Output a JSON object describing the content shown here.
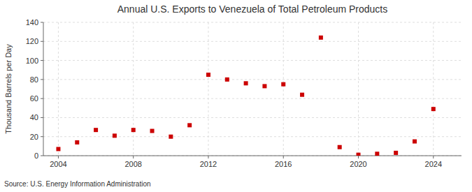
{
  "chart_data": {
    "type": "scatter",
    "title": "Annual U.S. Exports to Venezuela of Total Petroleum Products",
    "ylabel": "Thousand Barrels per Day",
    "annotations": [
      "Source: U.S. Energy Information Administration"
    ],
    "x": [
      2004,
      2005,
      2006,
      2007,
      2008,
      2009,
      2010,
      2011,
      2012,
      2013,
      2014,
      2015,
      2016,
      2017,
      2018,
      2019,
      2020,
      2021,
      2022,
      2023,
      2024
    ],
    "values": [
      7,
      14,
      27,
      21,
      27,
      26,
      20,
      32,
      85,
      80,
      76,
      73,
      75,
      64,
      124,
      9,
      1,
      2,
      3,
      15,
      49
    ],
    "color": "#cc0000",
    "marker": "square",
    "xlim": [
      2003.2,
      2025.5
    ],
    "ylim": [
      0,
      140
    ],
    "xticks": [
      2004,
      2008,
      2012,
      2016,
      2020,
      2024
    ],
    "yticks": [
      0,
      20,
      40,
      60,
      80,
      100,
      120,
      140
    ],
    "grid": true
  }
}
